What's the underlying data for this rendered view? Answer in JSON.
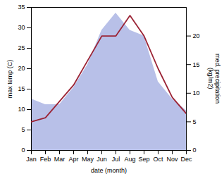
{
  "chart_data": {
    "type": "line",
    "categories": [
      "Jan",
      "Feb",
      "Mar",
      "Apr",
      "May",
      "Jun",
      "Jul",
      "Aug",
      "Sep",
      "Oct",
      "Nov",
      "Dec"
    ],
    "series": [
      {
        "type": "area",
        "axis": "y2",
        "color": "#b8c0e8",
        "values": [
          9,
          8,
          8,
          11,
          15,
          21,
          24,
          21,
          20,
          12,
          9,
          7
        ]
      },
      {
        "type": "line",
        "color": "#9b2335",
        "values": [
          7,
          8,
          12,
          16,
          22,
          28,
          28,
          33,
          28,
          20,
          13,
          9
        ]
      }
    ],
    "xlabel": "date (month)",
    "ylabel": "max temp (C)",
    "y2label": "med. precipitation\n(kg/m2)",
    "ylim": [
      0,
      35
    ],
    "yticks": [
      0,
      5,
      10,
      15,
      20,
      25,
      30,
      35
    ],
    "y2lim": [
      0,
      25
    ],
    "y2ticks": [
      0,
      5,
      10,
      15,
      20
    ]
  }
}
